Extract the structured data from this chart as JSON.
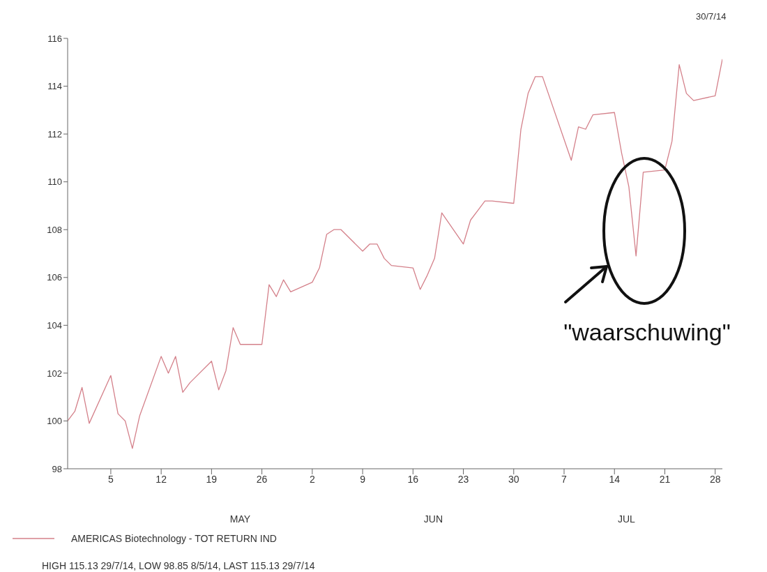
{
  "chart_data": {
    "type": "line",
    "title": "30/7/14",
    "x": [
      "--04-29",
      "--04-30",
      "--05-01",
      "--05-02",
      "--05-05",
      "--05-06",
      "--05-07",
      "--05-08",
      "--05-09",
      "--05-12",
      "--05-13",
      "--05-14",
      "--05-15",
      "--05-16",
      "--05-19",
      "--05-20",
      "--05-21",
      "--05-22",
      "--05-23",
      "--05-26",
      "--05-27",
      "--05-28",
      "--05-29",
      "--05-30",
      "--06-02",
      "--06-03",
      "--06-04",
      "--06-05",
      "--06-06",
      "--06-09",
      "--06-10",
      "--06-11",
      "--06-12",
      "--06-13",
      "--06-16",
      "--06-17",
      "--06-18",
      "--06-19",
      "--06-20",
      "--06-23",
      "--06-24",
      "--06-25",
      "--06-26",
      "--06-27",
      "--06-30",
      "--07-01",
      "--07-02",
      "--07-03",
      "--07-04",
      "--07-08",
      "--07-09",
      "--07-10",
      "--07-11",
      "--07-14",
      "--07-15",
      "--07-16",
      "--07-17",
      "--07-18",
      "--07-21",
      "--07-22",
      "--07-23",
      "--07-24",
      "--07-25",
      "--07-28",
      "--07-29"
    ],
    "series": [
      {
        "name": "AMERICAS Biotechnology - TOT RETURN IND",
        "color": "#d4808a",
        "values": [
          100.0,
          100.4,
          101.4,
          99.9,
          101.9,
          100.3,
          100.0,
          98.85,
          100.2,
          102.7,
          102.0,
          102.7,
          101.2,
          101.6,
          102.5,
          101.3,
          102.1,
          103.9,
          103.2,
          103.2,
          105.7,
          105.2,
          105.9,
          105.4,
          105.8,
          106.4,
          107.8,
          108.0,
          108.0,
          107.1,
          107.4,
          107.4,
          106.8,
          106.5,
          106.4,
          105.5,
          106.1,
          106.8,
          108.7,
          107.4,
          108.4,
          108.8,
          109.2,
          109.2,
          109.1,
          112.2,
          113.7,
          114.4,
          114.4,
          110.9,
          112.3,
          112.2,
          112.8,
          112.9,
          111.2,
          109.8,
          106.9,
          110.4,
          110.5,
          111.7,
          114.9,
          113.7,
          113.4,
          113.6,
          115.13
        ]
      }
    ],
    "xticks": [
      {
        "value": "--05-05",
        "label": "5"
      },
      {
        "value": "--05-12",
        "label": "12"
      },
      {
        "value": "--05-19",
        "label": "19"
      },
      {
        "value": "--05-26",
        "label": "26"
      },
      {
        "value": "--06-02",
        "label": "2"
      },
      {
        "value": "--06-09",
        "label": "9"
      },
      {
        "value": "--06-16",
        "label": "16"
      },
      {
        "value": "--06-23",
        "label": "23"
      },
      {
        "value": "--06-30",
        "label": "30"
      },
      {
        "value": "--07-07",
        "label": "7"
      },
      {
        "value": "--07-14",
        "label": "14"
      },
      {
        "value": "--07-21",
        "label": "21"
      },
      {
        "value": "--07-28",
        "label": "28"
      }
    ],
    "xlim": [
      "--04-29",
      "--07-29"
    ],
    "ylim": [
      98,
      116
    ],
    "yticks": [
      98,
      100,
      102,
      104,
      106,
      108,
      110,
      112,
      114,
      116
    ],
    "grid": false,
    "legend": "bottom left",
    "marker": "none",
    "line_style": "solid",
    "annotations": [
      "MAY",
      "JUN",
      "JUL",
      "\"waarschuwing\"",
      "HIGH 115.13 29/7/14, LOW 98.85 8/5/14, LAST 115.13 29/7/14"
    ]
  }
}
